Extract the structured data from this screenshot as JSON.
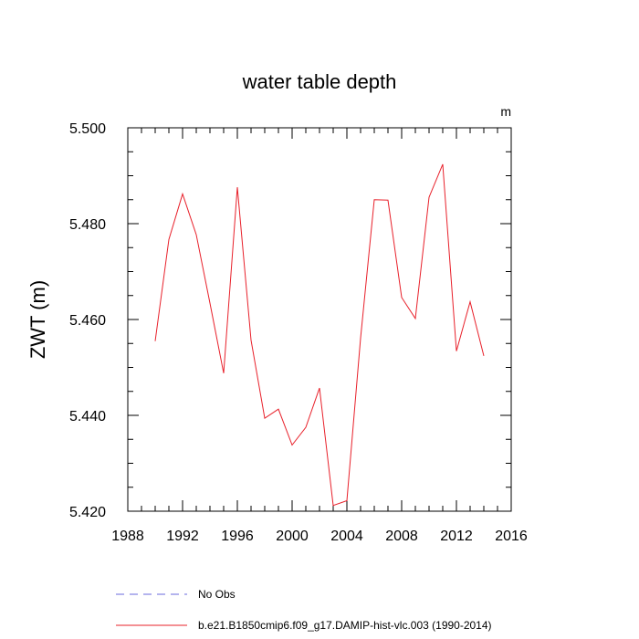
{
  "chart_data": {
    "type": "line",
    "title": "water table depth",
    "units_label": "m",
    "ylabel": "ZWT  (m)",
    "xlabel": "",
    "xlim": [
      1988,
      2016
    ],
    "ylim": [
      5.42,
      5.5
    ],
    "x_ticks": [
      1988,
      1992,
      1996,
      2000,
      2004,
      2008,
      2012,
      2016
    ],
    "y_ticks": [
      "5.420",
      "5.440",
      "5.460",
      "5.480",
      "5.500"
    ],
    "series": [
      {
        "name": "b.e21.B1850cmip6.f09_g17.DAMIP-hist-vlc.003 (1990-2014)",
        "color": "#e8202a",
        "style": "solid",
        "x": [
          1990,
          1991,
          1992,
          1993,
          1994,
          1995,
          1996,
          1997,
          1998,
          1999,
          2000,
          2001,
          2002,
          2003,
          2004,
          2005,
          2006,
          2007,
          2008,
          2009,
          2010,
          2011,
          2012,
          2013,
          2014
        ],
        "values": [
          5.4555,
          5.4767,
          5.4862,
          5.4777,
          5.4634,
          5.4488,
          5.4876,
          5.4557,
          5.4394,
          5.4413,
          5.4338,
          5.4375,
          5.4457,
          5.4212,
          5.4222,
          5.4561,
          5.485,
          5.4849,
          5.4646,
          5.4602,
          5.4855,
          5.4924,
          5.4534,
          5.4637,
          5.4524
        ]
      }
    ],
    "legend": {
      "placement": "bottom-left",
      "entries": [
        {
          "label": "No Obs",
          "color": "#6a6adc",
          "style": "dashed"
        },
        {
          "label": "b.e21.B1850cmip6.f09_g17.DAMIP-hist-vlc.003 (1990-2014)",
          "color": "#e8202a",
          "style": "solid"
        }
      ]
    },
    "grid": false
  }
}
